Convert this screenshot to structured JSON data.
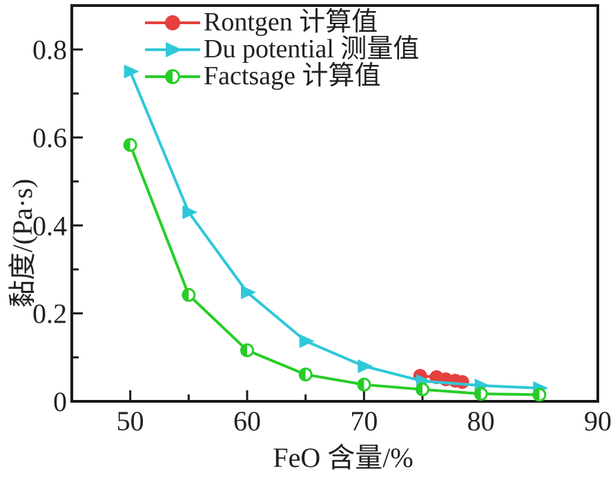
{
  "figure": {
    "background": "#ffffff",
    "ink_color": "#1a1a1a",
    "text_color": "#231f20"
  },
  "legend": {
    "position": "top-left-inside",
    "items": [
      {
        "label": "Rontgen 计算值",
        "marker": "filled-circle-icon",
        "color": "#e5403e"
      },
      {
        "label": "Du potential 测量值",
        "marker": "right-triangle-icon",
        "color": "#2fc8d8"
      },
      {
        "label": "Factsage 计算值",
        "marker": "half-filled-circle-icon",
        "color": "#27cd27"
      }
    ]
  },
  "chart_data": {
    "type": "line",
    "title": "",
    "xlabel": "FeO 含量/%",
    "ylabel": "黏度/(Pa·s)",
    "xlim": [
      45,
      90
    ],
    "ylim": [
      0,
      0.9
    ],
    "xticks": [
      50,
      60,
      70,
      80,
      90
    ],
    "xminorticks": [
      55,
      65,
      75,
      85
    ],
    "yticks": [
      0,
      0.2,
      0.4,
      0.6,
      0.8
    ],
    "ytick_labels": [
      "0",
      "0.2",
      "0.4",
      "0.6",
      "0.8"
    ],
    "yminorticks": [
      0.1,
      0.3,
      0.5,
      0.7
    ],
    "grid": false,
    "legend_position": "top-left-inside",
    "series": [
      {
        "id": "rontgen",
        "name": "Rontgen 计算值",
        "color": "#e5403e",
        "marker": "circle",
        "line": true,
        "x": [
          74.8,
          76.2,
          77.0,
          77.8,
          78.4
        ],
        "y": [
          0.058,
          0.055,
          0.05,
          0.047,
          0.044
        ]
      },
      {
        "id": "du-potential",
        "name": "Du potential 测量值",
        "color": "#2fc8d8",
        "marker": "triangle-right",
        "line": true,
        "x": [
          50,
          55,
          60,
          65,
          70,
          75,
          80,
          85
        ],
        "y": [
          0.75,
          0.43,
          0.248,
          0.137,
          0.08,
          0.046,
          0.036,
          0.03
        ]
      },
      {
        "id": "factsage",
        "name": "Factsage 计算值",
        "color": "#27cd27",
        "marker": "half-circle",
        "line": true,
        "x": [
          50,
          55,
          60,
          65,
          70,
          75,
          80,
          85
        ],
        "y": [
          0.583,
          0.242,
          0.116,
          0.061,
          0.038,
          0.027,
          0.017,
          0.015
        ]
      }
    ]
  }
}
